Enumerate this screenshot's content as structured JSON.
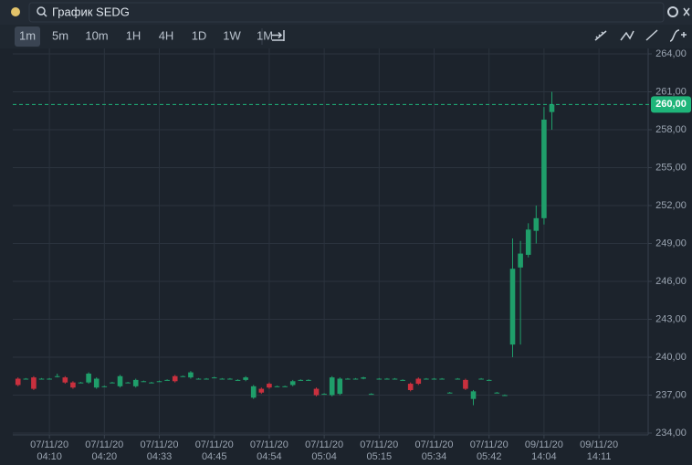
{
  "toolbar": {
    "search_title": "График SEDG",
    "intervals": [
      "1m",
      "5m",
      "10m",
      "1H",
      "4H",
      "1D",
      "1W",
      "1M"
    ],
    "active_index": 0
  },
  "chart_data": {
    "type": "candlestick",
    "up_color": "#1f9e6a",
    "down_color": "#c9303e",
    "grid": true,
    "xlim": [
      -0.2,
      80.5
    ],
    "xticks": [
      {
        "value": 4,
        "label": "07/11/20\n04:10"
      },
      {
        "value": 11,
        "label": "07/11/20\n04:20"
      },
      {
        "value": 18,
        "label": "07/11/20\n04:33"
      },
      {
        "value": 25,
        "label": "07/11/20\n04:45"
      },
      {
        "value": 32,
        "label": "07/11/20\n04:54"
      },
      {
        "value": 39,
        "label": "07/11/20\n05:04"
      },
      {
        "value": 46,
        "label": "07/11/20\n05:15"
      },
      {
        "value": 53,
        "label": "07/11/20\n05:34"
      },
      {
        "value": 60,
        "label": "07/11/20\n05:42"
      },
      {
        "value": 67,
        "label": "09/11/20\n14:04"
      },
      {
        "value": 74,
        "label": "09/11/20\n14:11"
      }
    ],
    "ylim": [
      234,
      264
    ],
    "yticks": [
      {
        "value": 234,
        "label": "234,00"
      },
      {
        "value": 237,
        "label": "237,00"
      },
      {
        "value": 240,
        "label": "240,00"
      },
      {
        "value": 243,
        "label": "243,00"
      },
      {
        "value": 246,
        "label": "246,00"
      },
      {
        "value": 249,
        "label": "249,00"
      },
      {
        "value": 252,
        "label": "252,00"
      },
      {
        "value": 255,
        "label": "255,00"
      },
      {
        "value": 258,
        "label": "258,00"
      },
      {
        "value": 261,
        "label": "261,00"
      },
      {
        "value": 264,
        "label": "264,00"
      }
    ],
    "last_price": {
      "value": 260,
      "label": "260,00",
      "color": "#1fb57a"
    },
    "ohlc": [
      [
        238.3,
        238.4,
        237.7,
        237.8
      ],
      [
        238.3,
        238.35,
        238.25,
        238.3
      ],
      [
        238.4,
        238.5,
        237.4,
        237.5
      ],
      [
        238.3,
        238.35,
        238.25,
        238.3
      ],
      [
        238.3,
        238.35,
        238.25,
        238.3
      ],
      [
        238.5,
        238.7,
        238.4,
        238.5
      ],
      [
        238.4,
        238.5,
        237.9,
        238.0
      ],
      [
        238.0,
        238.1,
        237.5,
        237.6
      ],
      [
        238.0,
        238.05,
        237.95,
        238.0
      ],
      [
        238.0,
        238.8,
        237.9,
        238.7
      ],
      [
        237.6,
        238.4,
        237.5,
        238.3
      ],
      [
        237.7,
        237.75,
        237.65,
        237.7
      ],
      [
        238.0,
        238.05,
        237.95,
        238.0
      ],
      [
        237.7,
        238.6,
        237.6,
        238.5
      ],
      [
        238.0,
        238.05,
        237.95,
        238.0
      ],
      [
        237.7,
        238.3,
        237.6,
        238.2
      ],
      [
        238.1,
        238.15,
        238.05,
        238.1
      ],
      [
        238.0,
        238.05,
        237.95,
        238.0
      ],
      [
        238.1,
        238.15,
        238.05,
        238.1
      ],
      [
        238.2,
        238.25,
        238.15,
        238.2
      ],
      [
        238.5,
        238.6,
        238.0,
        238.1
      ],
      [
        238.5,
        238.55,
        238.45,
        238.5
      ],
      [
        238.4,
        238.9,
        238.3,
        238.8
      ],
      [
        238.3,
        238.35,
        238.25,
        238.3
      ],
      [
        238.3,
        238.35,
        238.25,
        238.3
      ],
      [
        238.4,
        238.45,
        238.35,
        238.4
      ],
      [
        238.3,
        238.35,
        238.25,
        238.3
      ],
      [
        238.3,
        238.35,
        238.25,
        238.3
      ],
      [
        238.2,
        238.25,
        238.15,
        238.2
      ],
      [
        238.2,
        238.5,
        238.1,
        238.4
      ],
      [
        236.8,
        237.8,
        236.7,
        237.7
      ],
      [
        237.5,
        237.6,
        237.1,
        237.2
      ],
      [
        237.9,
        238.0,
        237.5,
        237.6
      ],
      [
        237.7,
        237.75,
        237.65,
        237.7
      ],
      [
        237.7,
        237.75,
        237.65,
        237.7
      ],
      [
        237.8,
        238.2,
        237.7,
        238.1
      ],
      [
        238.2,
        238.25,
        238.15,
        238.2
      ],
      [
        238.2,
        238.25,
        238.15,
        238.2
      ],
      [
        237.5,
        237.6,
        236.9,
        237.0
      ],
      [
        237.1,
        237.15,
        237.05,
        237.1
      ],
      [
        237.0,
        238.5,
        236.9,
        238.4
      ],
      [
        237.1,
        238.4,
        237.0,
        238.3
      ],
      [
        238.3,
        238.35,
        238.25,
        238.3
      ],
      [
        238.3,
        238.35,
        238.25,
        238.3
      ],
      [
        238.3,
        238.45,
        238.25,
        238.4
      ],
      [
        237.1,
        237.15,
        237.05,
        237.1
      ],
      [
        238.3,
        238.35,
        238.25,
        238.3
      ],
      [
        238.3,
        238.35,
        238.25,
        238.3
      ],
      [
        238.3,
        238.35,
        238.25,
        238.3
      ],
      [
        238.2,
        238.25,
        238.15,
        238.2
      ],
      [
        237.9,
        238.0,
        237.3,
        237.4
      ],
      [
        238.3,
        238.4,
        237.8,
        237.9
      ],
      [
        238.3,
        238.35,
        238.25,
        238.3
      ],
      [
        238.3,
        238.35,
        238.25,
        238.3
      ],
      [
        238.3,
        238.35,
        238.25,
        238.3
      ],
      [
        237.2,
        237.25,
        237.15,
        237.2
      ],
      [
        238.3,
        238.35,
        238.25,
        238.3
      ],
      [
        238.2,
        238.3,
        237.4,
        237.5
      ],
      [
        236.7,
        237.4,
        236.2,
        237.3
      ],
      [
        238.3,
        238.35,
        238.25,
        238.3
      ],
      [
        238.2,
        238.25,
        238.15,
        238.2
      ],
      [
        237.2,
        237.25,
        237.15,
        237.2
      ],
      [
        237.0,
        237.05,
        236.95,
        237.0
      ],
      [
        241.0,
        249.4,
        240.0,
        247.0
      ],
      [
        247.1,
        249.2,
        241.0,
        248.2
      ],
      [
        248.1,
        250.6,
        247.9,
        250.1
      ],
      [
        250.0,
        252.0,
        249.0,
        251.0
      ],
      [
        251.0,
        259.8,
        250.5,
        258.8
      ],
      [
        259.4,
        261.0,
        258.0,
        260.0
      ]
    ]
  }
}
